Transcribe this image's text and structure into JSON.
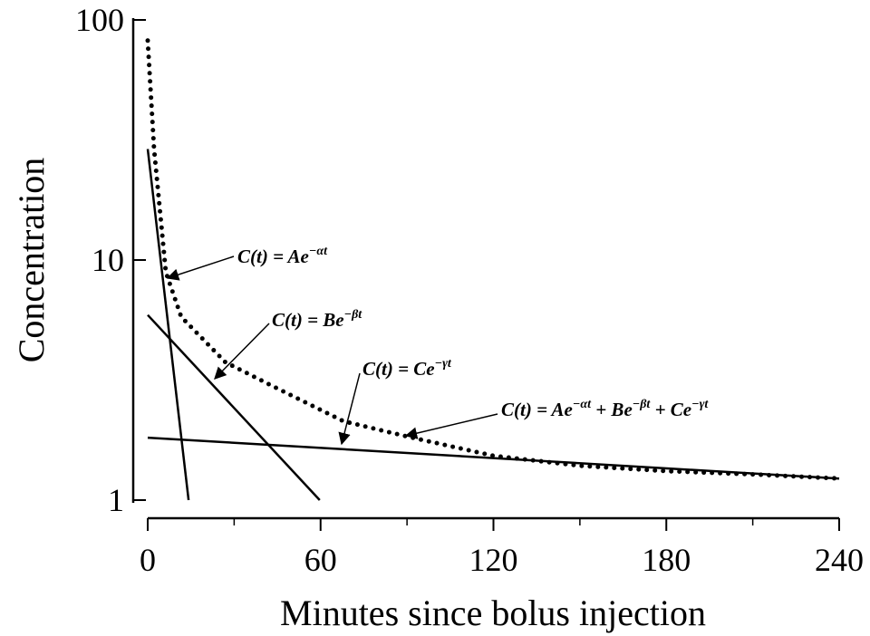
{
  "chart_data": {
    "type": "line",
    "x_label": "Minutes since bolus injection",
    "y_label": "Concentration",
    "xlim": [
      0,
      240
    ],
    "xticks": [
      0,
      60,
      120,
      180,
      240
    ],
    "xminorticks": [
      30,
      90,
      150,
      210
    ],
    "ylim": [
      1,
      100
    ],
    "yticks": [
      1,
      10,
      100
    ],
    "yscale": "log",
    "series": [
      {
        "color": "#000000",
        "style": "solid",
        "x": [
          0,
          14.2
        ],
        "values": [
          29,
          1
        ]
      },
      {
        "color": "#000000",
        "style": "solid",
        "x": [
          0,
          59.7
        ],
        "values": [
          5.9,
          1
        ]
      },
      {
        "color": "#000000",
        "style": "solid",
        "x": [
          0,
          240
        ],
        "values": [
          1.82,
          1.23
        ]
      },
      {
        "color": "#000000",
        "style": "dotted",
        "x": [
          0,
          2.2,
          6.3,
          11.6,
          27,
          43,
          68,
          90,
          120,
          150,
          180,
          210,
          240
        ],
        "values": [
          82,
          29,
          8.9,
          5.8,
          3.75,
          3.0,
          2.13,
          1.84,
          1.53,
          1.39,
          1.32,
          1.28,
          1.23
        ]
      }
    ],
    "annotations": [
      [
        "C(t) = Ae",
        "−αt"
      ],
      [
        "C(t) = Be",
        "−βt"
      ],
      [
        "C(t) = Ce",
        "−γt"
      ],
      [
        "C(t) = Ae",
        "−αt",
        " + Be",
        "−βt",
        " + Ce",
        "−γt"
      ]
    ]
  }
}
